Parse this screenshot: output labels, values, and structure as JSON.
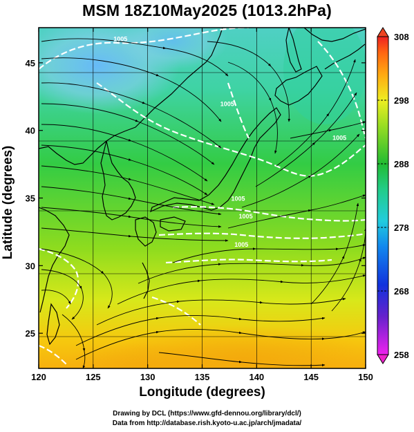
{
  "title": "MSM 18Z10May2025 (1013.2hPa)",
  "xaxis": {
    "label": "Longitude (degrees)",
    "range": [
      120,
      150
    ],
    "ticks": [
      120,
      125,
      130,
      135,
      140,
      145,
      150
    ]
  },
  "yaxis": {
    "label": "Latitude  (degrees)",
    "range": [
      22.4,
      47.6
    ],
    "ticks": [
      25,
      30,
      35,
      40,
      45
    ]
  },
  "colorbar": {
    "range": [
      258,
      308
    ],
    "ticks": [
      258,
      268,
      278,
      288,
      298,
      308
    ]
  },
  "contour_labels": [
    {
      "text": "1005",
      "lon": 127.5,
      "lat": 46.6
    },
    {
      "text": "1005",
      "lon": 137.3,
      "lat": 41.8
    },
    {
      "text": "1005",
      "lon": 147.6,
      "lat": 39.3
    },
    {
      "text": "1005",
      "lon": 138.3,
      "lat": 34.8
    },
    {
      "text": "1005",
      "lon": 139.0,
      "lat": 33.5
    },
    {
      "text": "1005",
      "lon": 138.6,
      "lat": 31.4
    }
  ],
  "credits": {
    "line1": "Drawing by DCL (https://www.gfd-dennou.org/library/dcl/)",
    "line2": "Data from http://database.rish.kyoto-u.ac.jp/arch/jmadata/"
  }
}
